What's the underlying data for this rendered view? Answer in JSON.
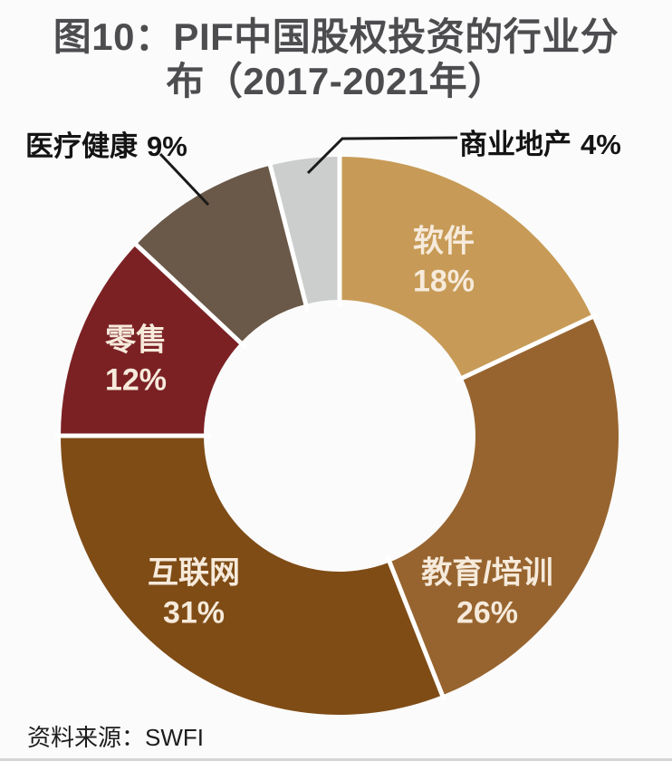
{
  "title": {
    "line1": "图10：PIF中国股权投资的行业分",
    "line2": "布（2017-2021年）"
  },
  "source": {
    "text": "资料来源：SWFI"
  },
  "chart_data": {
    "type": "pie",
    "subtype": "donut",
    "title": "图10：PIF中国股权投资的行业分布（2017-2021年）",
    "unit": "%",
    "direction": "clockwise",
    "start_angle_deg": 0,
    "donut_hole_ratio": 0.49,
    "divider_color": "#FFFFFF",
    "inside_label_color": "#F6EADB",
    "callout_text_color": "#141414",
    "segments": [
      {
        "label": "软件",
        "value": 18,
        "pct_text": "18%",
        "color": "#C79B57",
        "label_placement": "inside"
      },
      {
        "label": "教育/培训",
        "value": 26,
        "pct_text": "26%",
        "color": "#97642F",
        "label_placement": "inside"
      },
      {
        "label": "互联网",
        "value": 31,
        "pct_text": "31%",
        "color": "#7F4C16",
        "label_placement": "inside"
      },
      {
        "label": "零售",
        "value": 12,
        "pct_text": "12%",
        "color": "#7B2124",
        "label_placement": "inside"
      },
      {
        "label": "医疗健康",
        "value": 9,
        "pct_text": "9%",
        "color": "#6A5848",
        "label_placement": "callout-left"
      },
      {
        "label": "商业地产",
        "value": 4,
        "pct_text": "4%",
        "color": "#CCCDCD",
        "label_placement": "callout-right"
      }
    ]
  }
}
